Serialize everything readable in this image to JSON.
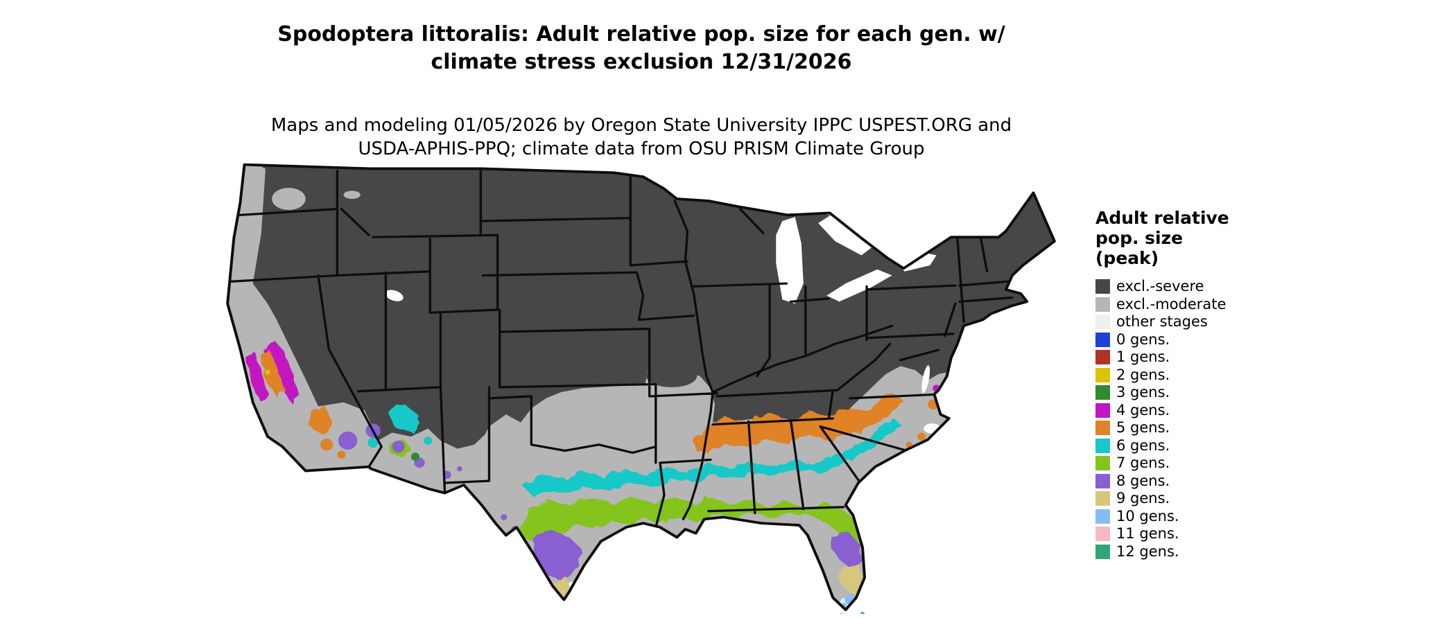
{
  "title": {
    "line1": "Spodoptera littoralis: Adult relative pop. size for each gen. w/",
    "line2": "climate stress exclusion 12/31/2026"
  },
  "subtitle": {
    "line1": "Maps and modeling 01/05/2026 by Oregon State University IPPC USPEST.ORG and",
    "line2": "USDA-APHIS-PPQ; climate data from OSU PRISM Climate Group"
  },
  "legend": {
    "title_line1": "Adult relative",
    "title_line2": "pop. size",
    "title_line3": "(peak)",
    "entries": [
      {
        "label": "excl.-severe",
        "color": "#474747"
      },
      {
        "label": "excl.-moderate",
        "color": "#b6b6b6"
      },
      {
        "label": "other stages",
        "color": "#edf0ef"
      },
      {
        "label": "0 gens.",
        "color": "#2040d8"
      },
      {
        "label": "1 gens.",
        "color": "#b03224"
      },
      {
        "label": "2 gens.",
        "color": "#ddc400"
      },
      {
        "label": "3 gens.",
        "color": "#2e8b2e"
      },
      {
        "label": "4 gens.",
        "color": "#c214c2"
      },
      {
        "label": "5 gens.",
        "color": "#e08228"
      },
      {
        "label": "6 gens.",
        "color": "#18c8c8"
      },
      {
        "label": "7 gens.",
        "color": "#84c41e"
      },
      {
        "label": "8 gens.",
        "color": "#8a5fd0"
      },
      {
        "label": "9 gens.",
        "color": "#d6c67e"
      },
      {
        "label": "10 gens.",
        "color": "#85bdf2"
      },
      {
        "label": "11 gens.",
        "color": "#f6b8c4"
      },
      {
        "label": "12 gens.",
        "color": "#2fa678"
      }
    ]
  },
  "map": {
    "water_color": "#ffffff",
    "border_color": "#0d0d0d"
  }
}
